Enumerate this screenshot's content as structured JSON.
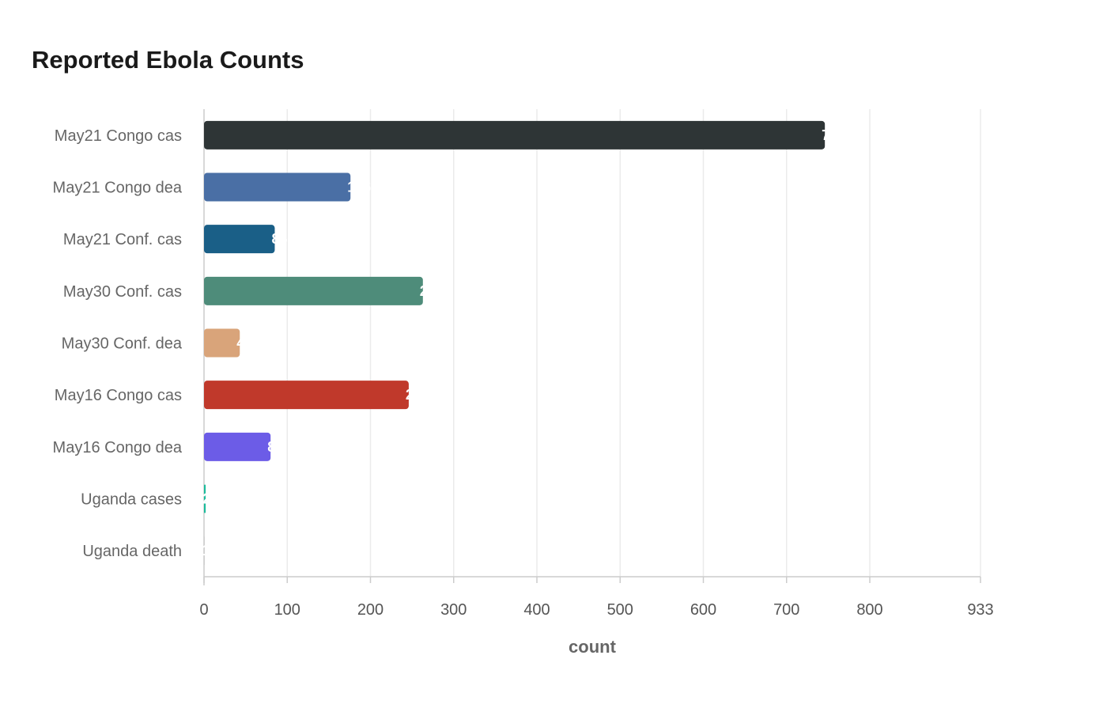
{
  "chart_data": {
    "type": "bar",
    "orientation": "horizontal",
    "title": "Reported Ebola Counts",
    "xlabel": "count",
    "ylabel": "",
    "xlim": [
      0,
      933
    ],
    "xticks": [
      0,
      100,
      200,
      300,
      400,
      500,
      600,
      700,
      800,
      933
    ],
    "grid": true,
    "categories": [
      "May21 Congo cas",
      "May21 Congo dea",
      "May21 Conf. cas",
      "May30 Conf. cas",
      "May30 Conf. dea",
      "May16 Congo cas",
      "May16 Congo dea",
      "Uganda cases",
      "Uganda death"
    ],
    "values": [
      746,
      176,
      85,
      263,
      43,
      246,
      80,
      2,
      1
    ],
    "colors": [
      "#2e3536",
      "#4a6fa5",
      "#1a5f87",
      "#4e8c7a",
      "#d9a47a",
      "#c0392b",
      "#6c5ce7",
      "#1abc9c",
      "#d0d0d0"
    ]
  }
}
